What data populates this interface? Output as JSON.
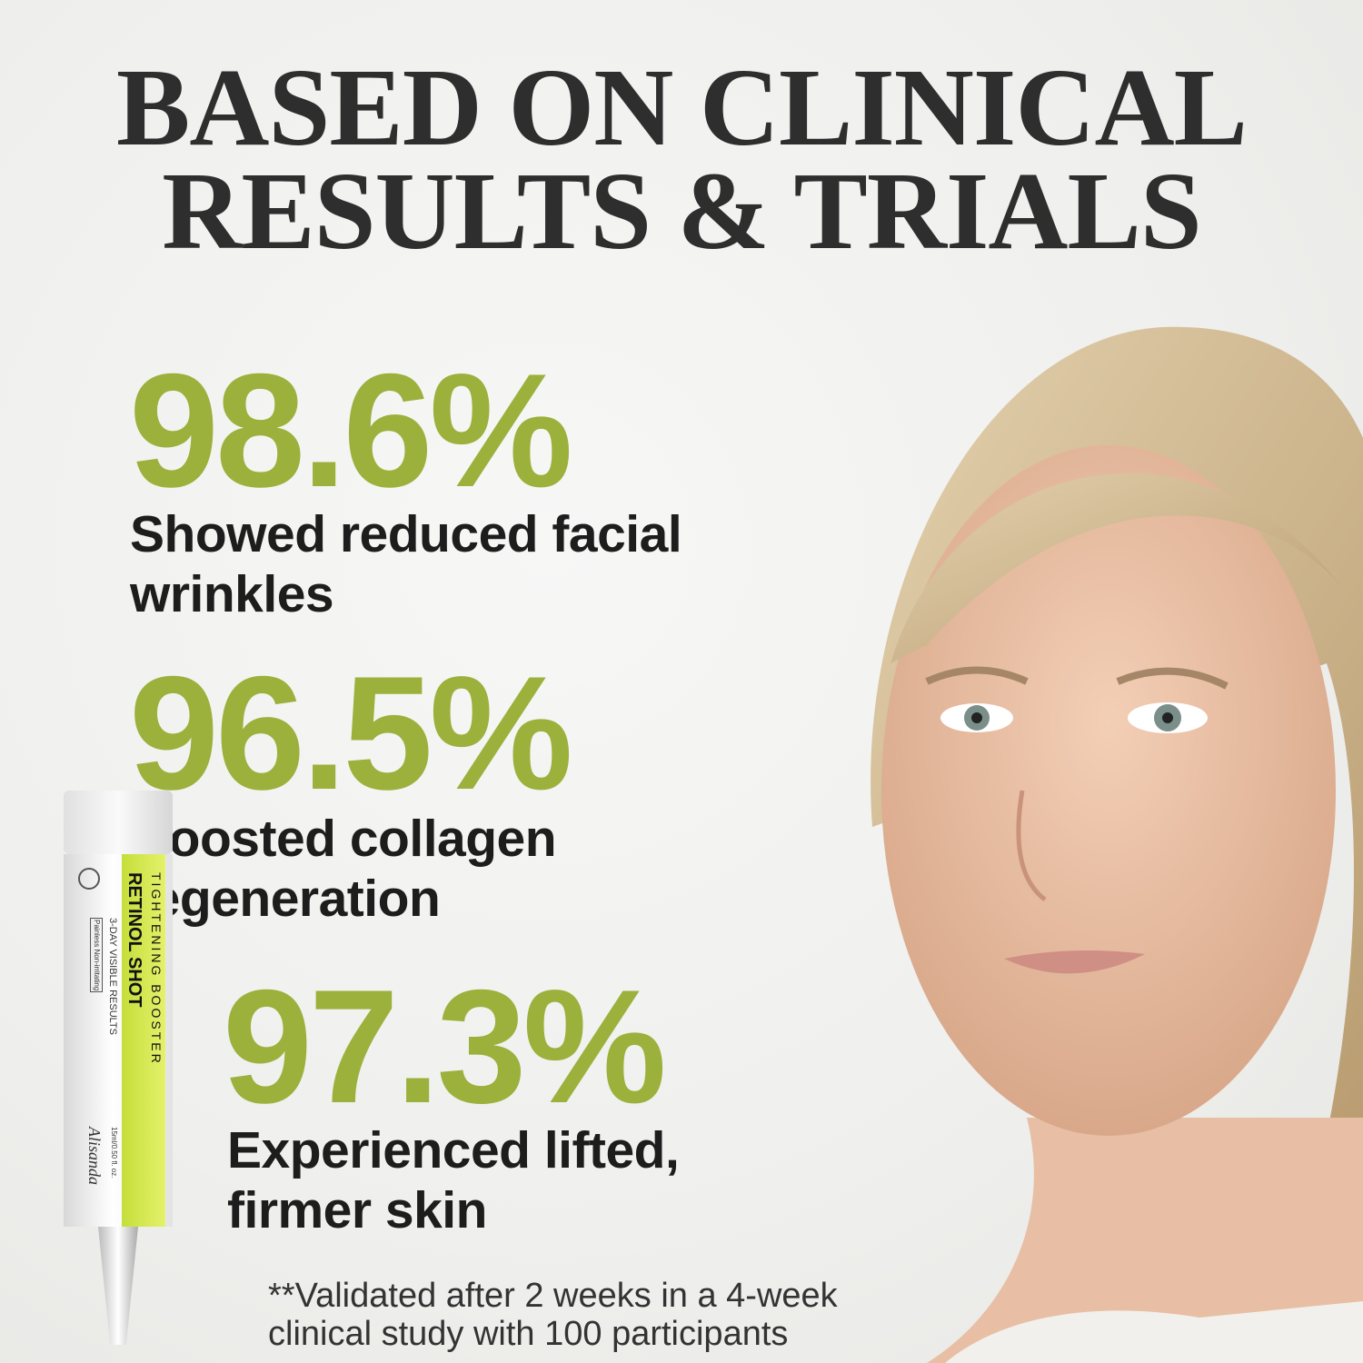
{
  "headline": {
    "line1": "BASED ON CLINICAL",
    "line2": "RESULTS & TRIALS"
  },
  "stats": [
    {
      "value": "98.6%",
      "desc_line1": "Showed reduced facial",
      "desc_line2": "wrinkles"
    },
    {
      "value": "96.5%",
      "desc_line1": "Boosted collagen",
      "desc_line2": "regeneration"
    },
    {
      "value": "97.3%",
      "desc_line1": "Experienced lifted,",
      "desc_line2": "firmer skin"
    }
  ],
  "footnote": {
    "line1": "**Validated after 2 weeks in a 4-week",
    "line2": "clinical study with 100 participants"
  },
  "product": {
    "name": "RETINOL SHOT",
    "subtitle": "TIGHTENING BOOSTER",
    "claim": "3-DAY VISIBLE RESULTS",
    "tag": "Painless Non-irritating",
    "size": "15ml/0.50 fl. oz.",
    "brand": "Alisanda"
  },
  "colors": {
    "accent": "#9cb03c",
    "text": "#1d1d1d",
    "title": "#2e2e2e",
    "tube_band": "#cfe24a"
  }
}
